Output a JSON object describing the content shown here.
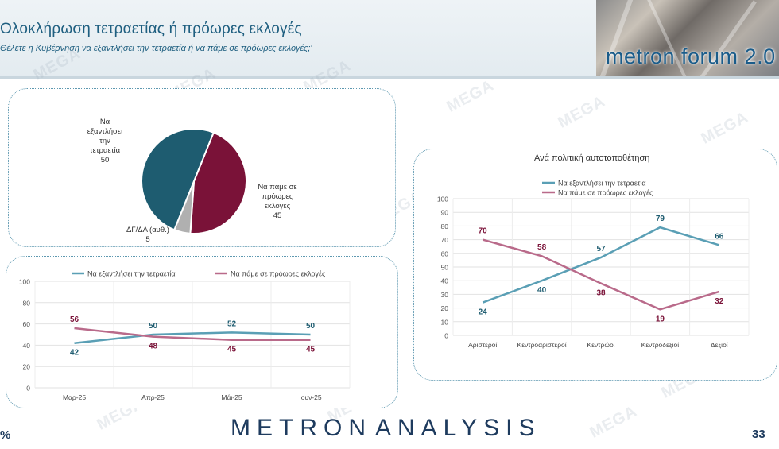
{
  "header": {
    "title": "Ολοκλήρωση τετραετίας ή πρόωρες εκλογές",
    "subtitle": "Θέλετε η Κυβέρνηση να εξαντλήσει την τετραετία ή να πάμε σε πρόωρες εκλογές;'",
    "logo_text": "metron forum 2.0"
  },
  "footer": {
    "brand_left": "METRON",
    "brand_right": "ANALYSIS",
    "page_number": "33",
    "percent_sign": "%"
  },
  "watermark": "MEGA",
  "colors": {
    "teal": "#1e5c70",
    "teal_line": "#5a9fb5",
    "maroon": "#7a1238",
    "maroon_line": "#b96a8a",
    "gray": "#b0b0b0",
    "grid": "#e0e0e0",
    "title_blue": "#1f5f80"
  },
  "chart_data": [
    {
      "type": "pie",
      "title": "",
      "slices": [
        {
          "label": "Να εξαντλήσει την τετραετία",
          "value": 50,
          "color": "#1e5c70"
        },
        {
          "label": "Να πάμε σε πρόωρες εκλογές",
          "value": 45,
          "color": "#7a1238"
        },
        {
          "label": "ΔΓ/ΔΑ (αυθ.)",
          "value": 5,
          "color": "#b0b0b0"
        }
      ],
      "label_lines": [
        [
          "Να",
          "εξαντλήσει",
          "την",
          "τετραετία",
          "50"
        ],
        [
          "Να πάμε σε",
          "πρόωρες",
          "εκλογές",
          "45"
        ],
        [
          "ΔΓ/ΔΑ (αυθ.)",
          "5"
        ]
      ]
    },
    {
      "type": "line",
      "title": "",
      "categories": [
        "Μαρ-25",
        "Απρ-25",
        "Μάι-25",
        "Ιουν-25"
      ],
      "series": [
        {
          "name": "Να εξαντλήσει την τετραετία",
          "values": [
            42,
            50,
            52,
            50
          ],
          "color": "#5a9fb5"
        },
        {
          "name": "Να πάμε σε πρόωρες εκλογές",
          "values": [
            56,
            48,
            45,
            45
          ],
          "color": "#b96a8a"
        }
      ],
      "ylim": [
        0,
        100
      ],
      "yticks": [
        0,
        20,
        40,
        60,
        80,
        100
      ],
      "grid": true,
      "legend": "top"
    },
    {
      "type": "line",
      "title": "Ανά πολιτική αυτοτοποθέτηση",
      "categories": [
        "Αριστεροί",
        "Κεντροαριστεροί",
        "Κεντρώοι",
        "Κεντροδεξιοί",
        "Δεξιοί"
      ],
      "series": [
        {
          "name": "Να εξαντλήσει την τετραετία",
          "values": [
            24,
            40,
            57,
            79,
            66
          ],
          "color": "#5a9fb5"
        },
        {
          "name": "Να πάμε σε πρόωρες εκλογές",
          "values": [
            70,
            58,
            38,
            19,
            32
          ],
          "color": "#b96a8a"
        }
      ],
      "ylim": [
        0,
        100
      ],
      "yticks": [
        0,
        10,
        20,
        30,
        40,
        50,
        60,
        70,
        80,
        90,
        100
      ],
      "grid": true,
      "legend": "top"
    }
  ]
}
